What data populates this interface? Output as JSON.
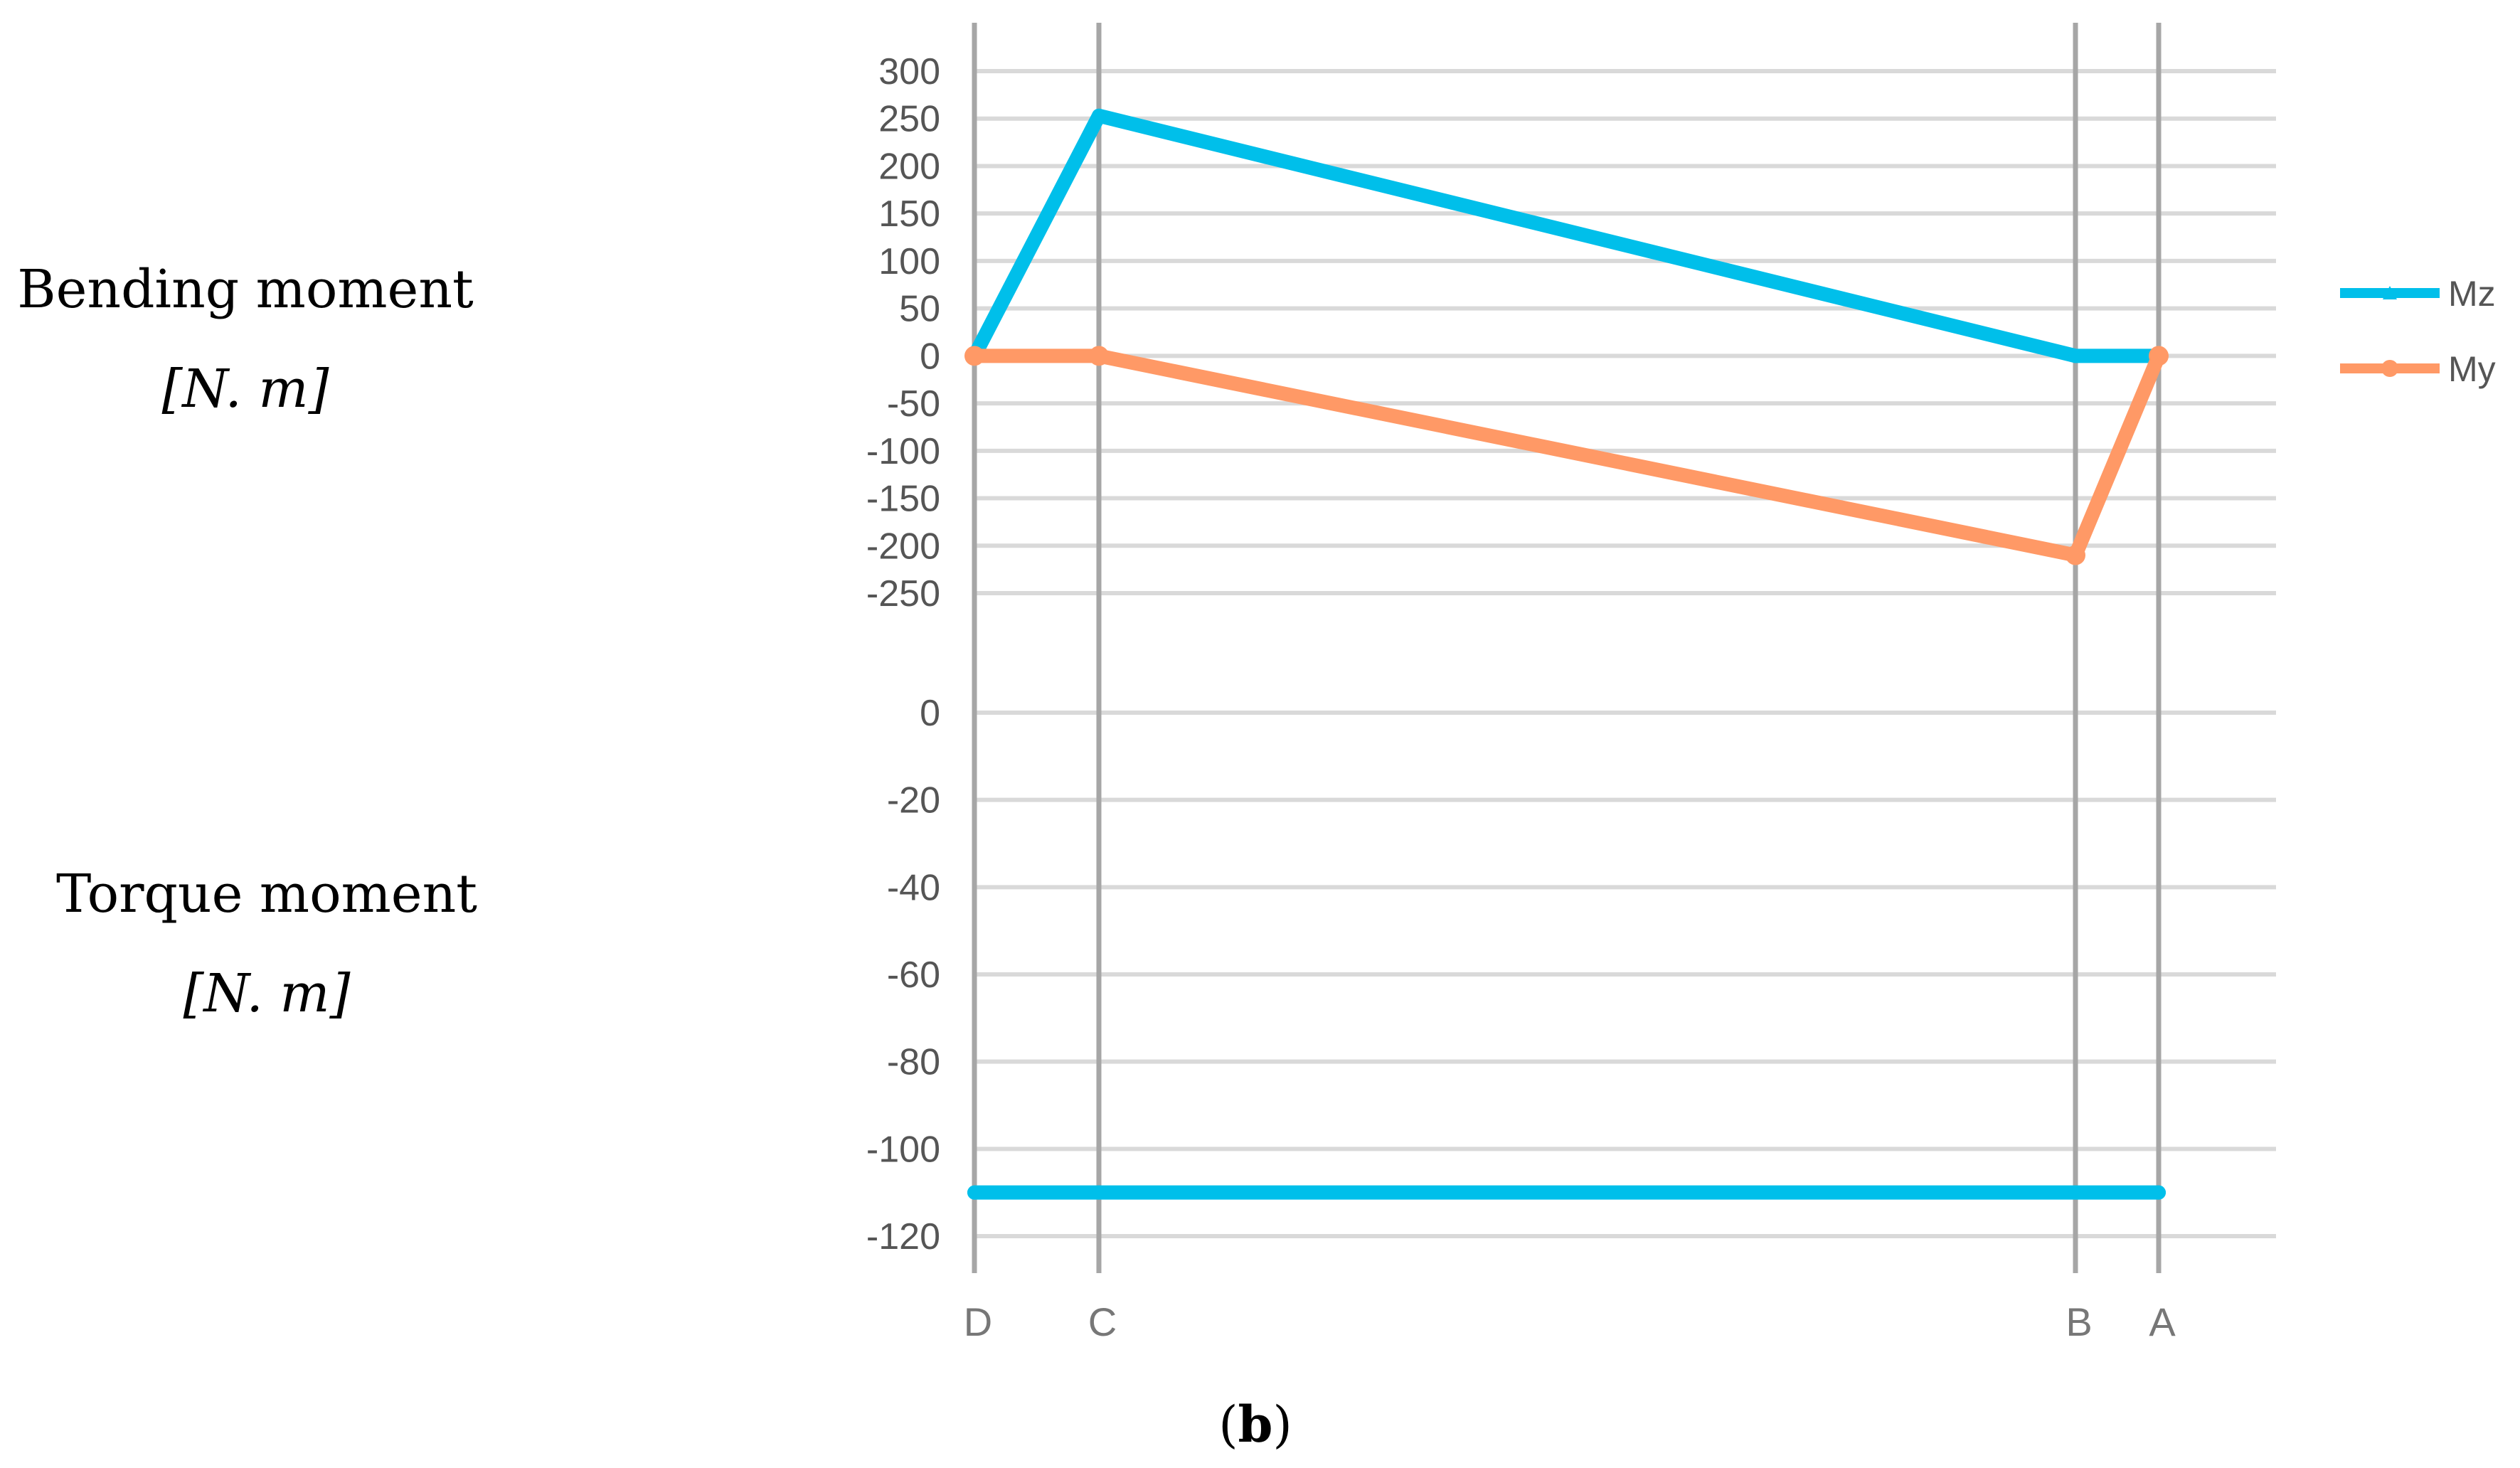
{
  "side_labels": {
    "bending_title": "Bending moment",
    "bending_unit": "[N. m]",
    "torque_title": "Torque moment",
    "torque_unit": "[N. m]"
  },
  "caption": {
    "open": "(",
    "letter": "b",
    "close": ")"
  },
  "colors": {
    "Mz": "#00BFEA",
    "My": "#FF9966",
    "grid": "#d9d9d9",
    "vline": "#a6a6a6"
  },
  "chart_data": [
    {
      "type": "line",
      "panel": "bending",
      "categories": [
        "D",
        "C",
        "B",
        "A"
      ],
      "ylim": [
        -250,
        300
      ],
      "yticks": [
        300,
        250,
        200,
        150,
        100,
        50,
        0,
        -50,
        -100,
        -150,
        -200,
        -250
      ],
      "grid": true,
      "legend_position": "right",
      "series": [
        {
          "name": "Mz",
          "marker": "triangle",
          "values": [
            0,
            253,
            0,
            0
          ]
        },
        {
          "name": "My",
          "marker": "circle",
          "values": [
            0,
            0,
            -210,
            0
          ]
        }
      ]
    },
    {
      "type": "line",
      "panel": "torque",
      "categories": [
        "D",
        "C",
        "B",
        "A"
      ],
      "ylim": [
        -120,
        0
      ],
      "yticks": [
        0,
        -20,
        -40,
        -60,
        -80,
        -100,
        -120
      ],
      "grid": true,
      "series": [
        {
          "values": [
            -110,
            -110,
            -110,
            -110
          ]
        }
      ]
    }
  ]
}
